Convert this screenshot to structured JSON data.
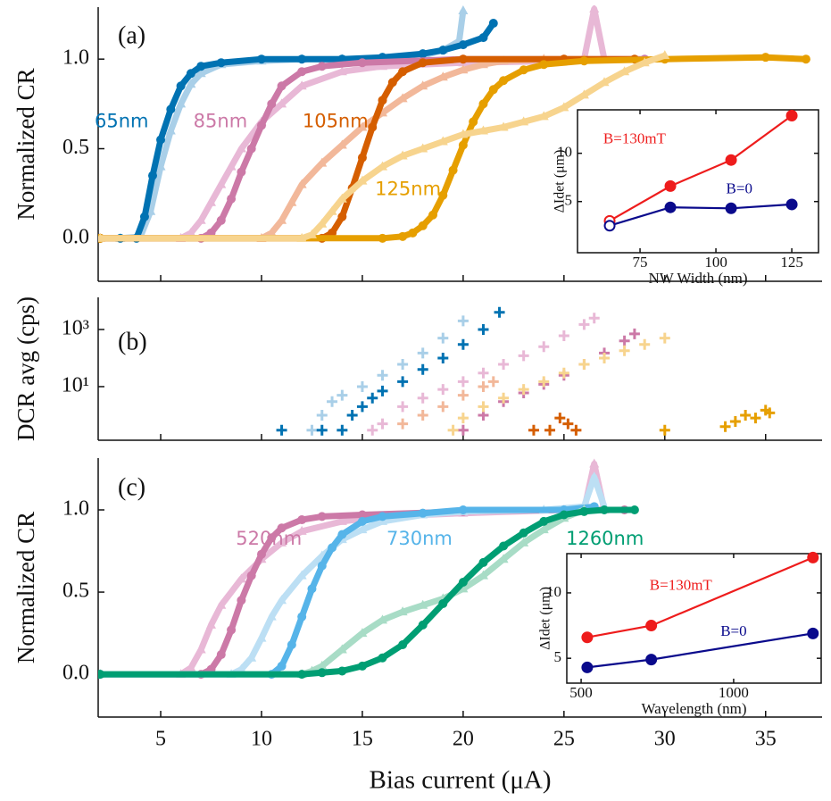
{
  "chart_data": [
    {
      "type": "scatter",
      "label": "(a)",
      "ylabel": "Normalized CR",
      "xlim": [
        1.9,
        37.8
      ],
      "ylim": [
        -0.24,
        1.29
      ],
      "xticks": [
        5,
        10,
        15,
        20,
        25,
        30,
        35
      ],
      "show_xtick_labels": false,
      "yticks": [
        {
          "value": 0,
          "label": "0.0"
        },
        {
          "value": 0.5,
          "label": "0.5"
        },
        {
          "value": 1,
          "label": "1.0"
        }
      ],
      "series": [
        {
          "color": "#a9cfe8",
          "marker": "^",
          "x": [
            2,
            3,
            4,
            4.5,
            5,
            5.5,
            6,
            6.5,
            7,
            8,
            10,
            12,
            14,
            16,
            18,
            19,
            19.8,
            20
          ],
          "values": [
            0,
            0,
            0.01,
            0.15,
            0.4,
            0.6,
            0.75,
            0.86,
            0.92,
            0.97,
            0.99,
            1.0,
            1.0,
            1.0,
            1.02,
            1.05,
            1.1,
            1.27
          ]
        },
        {
          "name": "65nm",
          "color": "#0072b2",
          "marker": "o",
          "x": [
            2,
            3,
            3.8,
            4.2,
            4.6,
            5,
            5.5,
            6,
            6.5,
            7,
            8,
            10,
            12,
            14,
            16,
            18,
            19,
            20,
            21,
            21.5
          ],
          "values": [
            0,
            0,
            0,
            0.12,
            0.35,
            0.55,
            0.72,
            0.85,
            0.92,
            0.96,
            0.98,
            1.0,
            1.0,
            1.0,
            1.01,
            1.03,
            1.05,
            1.08,
            1.12,
            1.2
          ]
        },
        {
          "color": "#e8b8d6",
          "marker": "^",
          "x": [
            2,
            6,
            6.5,
            7,
            7.5,
            8,
            8.5,
            9,
            10,
            11,
            12,
            14,
            16,
            20,
            25,
            26,
            26.5,
            27
          ],
          "values": [
            0,
            0,
            0.03,
            0.1,
            0.2,
            0.3,
            0.4,
            0.5,
            0.65,
            0.75,
            0.85,
            0.93,
            0.96,
            0.98,
            0.99,
            1.0,
            1.28,
            1.0
          ]
        },
        {
          "name": "85nm",
          "color": "#cc79a7",
          "marker": "o",
          "x": [
            2,
            7,
            7.5,
            8,
            8.5,
            9,
            9.5,
            10,
            10.5,
            11,
            12,
            13,
            15,
            20,
            25,
            29
          ],
          "values": [
            0,
            0,
            0.03,
            0.1,
            0.22,
            0.37,
            0.5,
            0.63,
            0.75,
            0.85,
            0.93,
            0.96,
            0.98,
            1.0,
            1.0,
            1.0
          ]
        },
        {
          "color": "#f2b89a",
          "marker": "^",
          "x": [
            2,
            10,
            10.5,
            11,
            11.5,
            12,
            13,
            14,
            15,
            16,
            17,
            18,
            19,
            20,
            21,
            22,
            24,
            26
          ],
          "values": [
            0,
            0,
            0.03,
            0.1,
            0.2,
            0.3,
            0.42,
            0.52,
            0.62,
            0.7,
            0.78,
            0.85,
            0.9,
            0.94,
            0.97,
            0.99,
            1.0,
            1.0
          ]
        },
        {
          "name": "105nm",
          "color": "#d55e00",
          "marker": "o",
          "x": [
            2,
            13,
            13.5,
            14,
            14.5,
            15,
            15.5,
            16,
            16.5,
            17,
            18,
            20,
            25,
            28.5
          ],
          "values": [
            0,
            0,
            0.03,
            0.12,
            0.28,
            0.45,
            0.62,
            0.77,
            0.87,
            0.93,
            0.98,
            1.0,
            1.0,
            1.0
          ]
        },
        {
          "name": "125nm",
          "color": "#e69f00",
          "marker": "o",
          "x": [
            2,
            16,
            17,
            17.5,
            18,
            18.5,
            19,
            19.5,
            20,
            20.5,
            21,
            21.5,
            22,
            23,
            24,
            26,
            30,
            35,
            37
          ],
          "values": [
            0,
            0,
            0.01,
            0.03,
            0.07,
            0.13,
            0.24,
            0.38,
            0.52,
            0.65,
            0.75,
            0.83,
            0.88,
            0.94,
            0.97,
            0.99,
            1.0,
            1.01,
            1.0
          ]
        },
        {
          "color": "#f7d48e",
          "marker": "^",
          "x": [
            2,
            12,
            12.5,
            13,
            13.5,
            14,
            15,
            16,
            17,
            18,
            19,
            20,
            21,
            22,
            23,
            24,
            25,
            26,
            27,
            28,
            29,
            30
          ],
          "values": [
            0,
            0,
            0.02,
            0.08,
            0.15,
            0.22,
            0.32,
            0.4,
            0.46,
            0.5,
            0.54,
            0.58,
            0.6,
            0.62,
            0.65,
            0.68,
            0.73,
            0.8,
            0.87,
            0.93,
            0.98,
            1.02
          ]
        }
      ]
    },
    {
      "type": "scatter",
      "label": "(b)",
      "ylabel": "DCR avg (cps)",
      "log_y": true,
      "xlim": [
        1.9,
        37.8
      ],
      "ylim": [
        0.133,
        13300
      ],
      "xticks": [
        5,
        10,
        15,
        20,
        25,
        30,
        35
      ],
      "show_xtick_labels": false,
      "yticks": [
        {
          "value": 10,
          "label": "10¹"
        },
        {
          "value": 1000,
          "label": "10³"
        }
      ],
      "series": [
        {
          "color": "#a9cfe8",
          "marker": "+",
          "x": [
            12.5,
            13,
            13.5,
            14,
            15,
            16,
            17,
            18,
            19,
            20
          ],
          "values": [
            0.3,
            1,
            3,
            5,
            10,
            25,
            60,
            150,
            500,
            2000
          ]
        },
        {
          "color": "#0072b2",
          "marker": "+",
          "x": [
            11,
            13,
            14,
            14.5,
            15,
            15.5,
            16,
            17,
            18,
            19,
            20,
            21,
            21.8
          ],
          "values": [
            0.3,
            0.3,
            0.3,
            1,
            2,
            4,
            7,
            15,
            40,
            100,
            300,
            1000,
            4000
          ]
        },
        {
          "color": "#e8b8d6",
          "marker": "+",
          "x": [
            15.5,
            16,
            17,
            18,
            19,
            20,
            21,
            22,
            23,
            24,
            25,
            26,
            26.5
          ],
          "values": [
            0.3,
            0.5,
            2,
            4,
            8,
            15,
            30,
            60,
            120,
            250,
            600,
            1500,
            2500
          ]
        },
        {
          "color": "#f2b89a",
          "marker": "+",
          "x": [
            17,
            18,
            19,
            20,
            21,
            21.5
          ],
          "values": [
            0.5,
            1,
            2,
            5,
            10,
            15
          ]
        },
        {
          "color": "#cc79a7",
          "marker": "+",
          "x": [
            20,
            21,
            22,
            23,
            24,
            25,
            26,
            27,
            28,
            28.5
          ],
          "values": [
            0.3,
            1,
            3,
            6,
            12,
            25,
            60,
            150,
            400,
            700
          ]
        },
        {
          "color": "#f7d48e",
          "marker": "+",
          "x": [
            19.5,
            20,
            21,
            22,
            23,
            24,
            25,
            26,
            27,
            28,
            29,
            30
          ],
          "values": [
            0.3,
            0.8,
            2,
            4,
            8,
            15,
            30,
            60,
            100,
            180,
            300,
            500
          ]
        },
        {
          "color": "#d55e00",
          "marker": "+",
          "x": [
            23.5,
            24.3,
            24.8,
            25.2,
            25.6
          ],
          "values": [
            0.3,
            0.3,
            0.8,
            0.5,
            0.3
          ]
        },
        {
          "color": "#e69f00",
          "marker": "+",
          "x": [
            30,
            33,
            33.5,
            34,
            34.5,
            35,
            35.2
          ],
          "values": [
            0.3,
            0.4,
            0.6,
            1,
            0.8,
            1.5,
            1.2
          ]
        }
      ]
    },
    {
      "type": "scatter",
      "label": "(c)",
      "ylabel": "Normalized CR",
      "xlabel": "Bias current (μA)",
      "xlim": [
        1.9,
        37.8
      ],
      "ylim": [
        -0.26,
        1.315
      ],
      "xticks": [
        5,
        10,
        15,
        20,
        25,
        30,
        35
      ],
      "show_xtick_labels": true,
      "yticks": [
        {
          "value": 0,
          "label": "0.0"
        },
        {
          "value": 0.5,
          "label": "0.5"
        },
        {
          "value": 1,
          "label": "1.0"
        }
      ],
      "series": [
        {
          "color": "#e8b8d6",
          "marker": "^",
          "x": [
            2,
            6,
            6.5,
            7,
            7.5,
            8,
            9,
            10,
            11,
            12,
            14,
            16,
            20,
            25,
            26,
            26.5,
            27
          ],
          "values": [
            0,
            0,
            0.04,
            0.15,
            0.3,
            0.42,
            0.58,
            0.7,
            0.8,
            0.87,
            0.93,
            0.96,
            0.98,
            1.0,
            1.0,
            1.28,
            1.0
          ]
        },
        {
          "name": "520nm",
          "color": "#cc79a7",
          "marker": "o",
          "x": [
            2,
            7,
            7.5,
            8,
            8.5,
            9,
            9.5,
            10,
            10.5,
            11,
            12,
            13,
            15,
            20,
            25,
            28
          ],
          "values": [
            0,
            0,
            0.03,
            0.12,
            0.27,
            0.45,
            0.6,
            0.73,
            0.83,
            0.89,
            0.94,
            0.96,
            0.97,
            0.99,
            1.0,
            1.0
          ]
        },
        {
          "color": "#bcdff4",
          "marker": "^",
          "x": [
            2,
            8.5,
            9,
            9.5,
            10,
            10.5,
            11,
            12,
            13,
            14,
            15,
            16,
            18,
            20,
            24,
            26,
            26.5,
            27
          ],
          "values": [
            0,
            0,
            0.03,
            0.1,
            0.22,
            0.35,
            0.45,
            0.6,
            0.72,
            0.82,
            0.88,
            0.93,
            0.97,
            0.99,
            1.0,
            1.02,
            1.2,
            1.02
          ]
        },
        {
          "name": "730nm",
          "color": "#56b4e9",
          "marker": "o",
          "x": [
            2,
            10.5,
            11,
            11.5,
            12,
            12.5,
            13,
            13.5,
            14,
            15,
            16,
            18,
            20,
            25,
            26.5
          ],
          "values": [
            0,
            0,
            0.05,
            0.18,
            0.35,
            0.52,
            0.66,
            0.77,
            0.85,
            0.93,
            0.96,
            0.98,
            1.0,
            1.0,
            1.02
          ]
        },
        {
          "color": "#a8dcc6",
          "marker": "^",
          "x": [
            2,
            12,
            12.5,
            13,
            14,
            15,
            16,
            17,
            18,
            19,
            20,
            21,
            22,
            23,
            24,
            25,
            26
          ],
          "values": [
            0,
            0,
            0.02,
            0.05,
            0.15,
            0.25,
            0.33,
            0.38,
            0.42,
            0.46,
            0.52,
            0.6,
            0.7,
            0.8,
            0.88,
            0.95,
            1.0
          ]
        },
        {
          "name": "1260nm",
          "color": "#009e73",
          "marker": "o",
          "x": [
            2,
            12,
            13,
            14,
            15,
            16,
            17,
            18,
            19,
            20,
            21,
            22,
            23,
            24,
            25,
            26,
            27,
            28.5
          ],
          "values": [
            0,
            0,
            0.01,
            0.02,
            0.05,
            0.1,
            0.18,
            0.3,
            0.43,
            0.56,
            0.68,
            0.78,
            0.86,
            0.93,
            0.97,
            0.99,
            1.0,
            1.0
          ]
        }
      ]
    },
    {
      "type": "line",
      "xlabel": "NW Width (nm)",
      "ylabel": "ΔIdet (μm)",
      "xlim": [
        54.4,
        133.8
      ],
      "ylim": [
        -0.3,
        14.5
      ],
      "xticks": [
        75,
        100,
        125
      ],
      "show_xtick_labels": true,
      "yticks": [
        5,
        10
      ],
      "hollow_first_point": true,
      "series": [
        {
          "name": "B=130mT",
          "color": "#ee1c1c",
          "x": [
            65,
            85,
            105,
            125
          ],
          "values": [
            3.0,
            6.6,
            9.3,
            13.9
          ]
        },
        {
          "name": "B=0",
          "color": "#0a0a8c",
          "x": [
            65,
            85,
            105,
            125
          ],
          "values": [
            2.5,
            4.4,
            4.3,
            4.7
          ]
        }
      ]
    },
    {
      "type": "line",
      "xlabel": "Wavelength (nm)",
      "ylabel": "ΔIdet (μm)",
      "xlim": [
        453,
        1287
      ],
      "ylim": [
        3.1,
        13.0
      ],
      "xticks": [
        500,
        1000
      ],
      "show_xtick_labels": true,
      "yticks": [
        5,
        10
      ],
      "hollow_first_point": false,
      "series": [
        {
          "name": "B=130mT",
          "color": "#ee1c1c",
          "x": [
            520,
            730,
            1260
          ],
          "values": [
            6.6,
            7.5,
            12.7
          ]
        },
        {
          "name": "B=0",
          "color": "#0a0a8c",
          "x": [
            520,
            730,
            1260
          ],
          "values": [
            4.3,
            4.9,
            6.9
          ]
        }
      ]
    }
  ]
}
